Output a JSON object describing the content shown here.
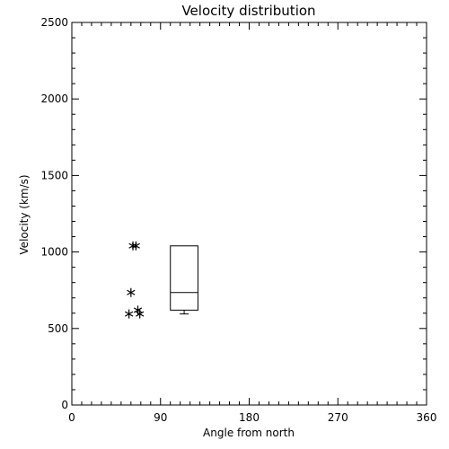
{
  "chart_data": {
    "type": "scatter",
    "title": "Velocity distribution",
    "xlabel": "Angle from north",
    "ylabel": "Velocity (km/s)",
    "xlim": [
      0,
      360
    ],
    "ylim": [
      0,
      2500
    ],
    "xticks": [
      "0",
      "90",
      "180",
      "270",
      "360"
    ],
    "yticks": [
      "0",
      "500",
      "1000",
      "1500",
      "2000",
      "2500"
    ],
    "x_major_step": 90,
    "x_minor_step": 10,
    "y_major_step": 500,
    "y_minor_step": 100,
    "points": [
      {
        "x": 62,
        "y": 1040
      },
      {
        "x": 65,
        "y": 1040
      },
      {
        "x": 60,
        "y": 735
      },
      {
        "x": 67,
        "y": 620
      },
      {
        "x": 58,
        "y": 595
      },
      {
        "x": 69,
        "y": 595
      }
    ],
    "boxplot": {
      "x_left": 100,
      "x_right": 128,
      "q1": 620,
      "median": 735,
      "q3": 1040,
      "whisker_min": 595,
      "whisker_max": 1040
    },
    "grid": false,
    "colors": {
      "foreground": "#000000",
      "background": "#ffffff"
    }
  }
}
